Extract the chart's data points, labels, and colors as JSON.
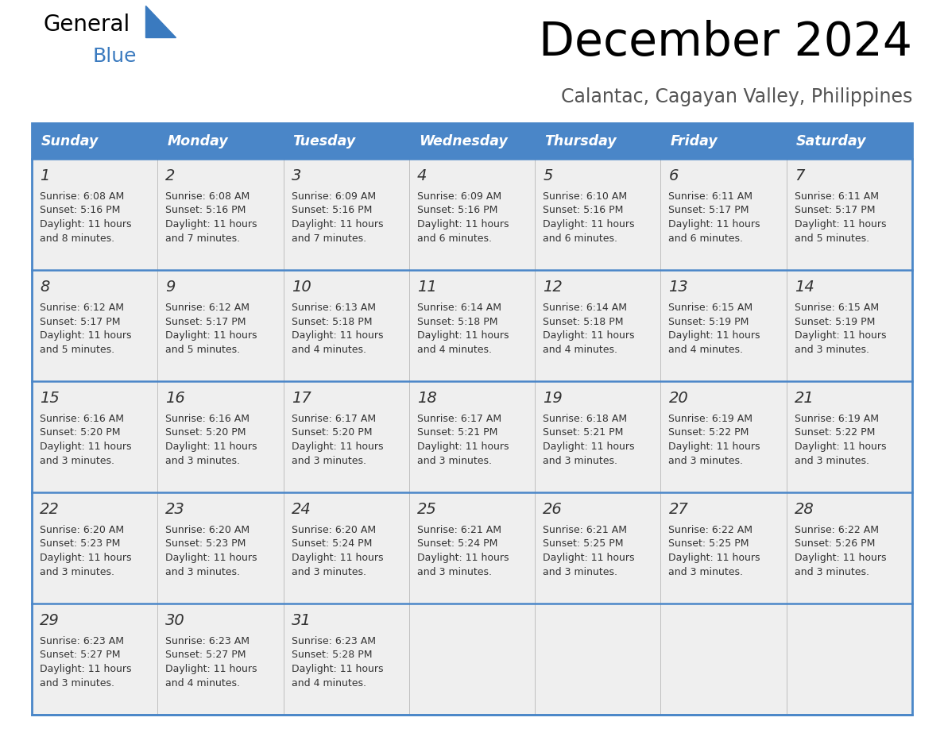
{
  "title": "December 2024",
  "subtitle": "Calantac, Cagayan Valley, Philippines",
  "header_color": "#4a86c8",
  "header_text_color": "#ffffff",
  "cell_bg_color": "#efefef",
  "border_color": "#4a86c8",
  "text_color": "#333333",
  "days_of_week": [
    "Sunday",
    "Monday",
    "Tuesday",
    "Wednesday",
    "Thursday",
    "Friday",
    "Saturday"
  ],
  "calendar_data": [
    [
      {
        "day": 1,
        "sunrise": "6:08 AM",
        "sunset": "5:16 PM",
        "daylight_line1": "Daylight: 11 hours",
        "daylight_line2": "and 8 minutes."
      },
      {
        "day": 2,
        "sunrise": "6:08 AM",
        "sunset": "5:16 PM",
        "daylight_line1": "Daylight: 11 hours",
        "daylight_line2": "and 7 minutes."
      },
      {
        "day": 3,
        "sunrise": "6:09 AM",
        "sunset": "5:16 PM",
        "daylight_line1": "Daylight: 11 hours",
        "daylight_line2": "and 7 minutes."
      },
      {
        "day": 4,
        "sunrise": "6:09 AM",
        "sunset": "5:16 PM",
        "daylight_line1": "Daylight: 11 hours",
        "daylight_line2": "and 6 minutes."
      },
      {
        "day": 5,
        "sunrise": "6:10 AM",
        "sunset": "5:16 PM",
        "daylight_line1": "Daylight: 11 hours",
        "daylight_line2": "and 6 minutes."
      },
      {
        "day": 6,
        "sunrise": "6:11 AM",
        "sunset": "5:17 PM",
        "daylight_line1": "Daylight: 11 hours",
        "daylight_line2": "and 6 minutes."
      },
      {
        "day": 7,
        "sunrise": "6:11 AM",
        "sunset": "5:17 PM",
        "daylight_line1": "Daylight: 11 hours",
        "daylight_line2": "and 5 minutes."
      }
    ],
    [
      {
        "day": 8,
        "sunrise": "6:12 AM",
        "sunset": "5:17 PM",
        "daylight_line1": "Daylight: 11 hours",
        "daylight_line2": "and 5 minutes."
      },
      {
        "day": 9,
        "sunrise": "6:12 AM",
        "sunset": "5:17 PM",
        "daylight_line1": "Daylight: 11 hours",
        "daylight_line2": "and 5 minutes."
      },
      {
        "day": 10,
        "sunrise": "6:13 AM",
        "sunset": "5:18 PM",
        "daylight_line1": "Daylight: 11 hours",
        "daylight_line2": "and 4 minutes."
      },
      {
        "day": 11,
        "sunrise": "6:14 AM",
        "sunset": "5:18 PM",
        "daylight_line1": "Daylight: 11 hours",
        "daylight_line2": "and 4 minutes."
      },
      {
        "day": 12,
        "sunrise": "6:14 AM",
        "sunset": "5:18 PM",
        "daylight_line1": "Daylight: 11 hours",
        "daylight_line2": "and 4 minutes."
      },
      {
        "day": 13,
        "sunrise": "6:15 AM",
        "sunset": "5:19 PM",
        "daylight_line1": "Daylight: 11 hours",
        "daylight_line2": "and 4 minutes."
      },
      {
        "day": 14,
        "sunrise": "6:15 AM",
        "sunset": "5:19 PM",
        "daylight_line1": "Daylight: 11 hours",
        "daylight_line2": "and 3 minutes."
      }
    ],
    [
      {
        "day": 15,
        "sunrise": "6:16 AM",
        "sunset": "5:20 PM",
        "daylight_line1": "Daylight: 11 hours",
        "daylight_line2": "and 3 minutes."
      },
      {
        "day": 16,
        "sunrise": "6:16 AM",
        "sunset": "5:20 PM",
        "daylight_line1": "Daylight: 11 hours",
        "daylight_line2": "and 3 minutes."
      },
      {
        "day": 17,
        "sunrise": "6:17 AM",
        "sunset": "5:20 PM",
        "daylight_line1": "Daylight: 11 hours",
        "daylight_line2": "and 3 minutes."
      },
      {
        "day": 18,
        "sunrise": "6:17 AM",
        "sunset": "5:21 PM",
        "daylight_line1": "Daylight: 11 hours",
        "daylight_line2": "and 3 minutes."
      },
      {
        "day": 19,
        "sunrise": "6:18 AM",
        "sunset": "5:21 PM",
        "daylight_line1": "Daylight: 11 hours",
        "daylight_line2": "and 3 minutes."
      },
      {
        "day": 20,
        "sunrise": "6:19 AM",
        "sunset": "5:22 PM",
        "daylight_line1": "Daylight: 11 hours",
        "daylight_line2": "and 3 minutes."
      },
      {
        "day": 21,
        "sunrise": "6:19 AM",
        "sunset": "5:22 PM",
        "daylight_line1": "Daylight: 11 hours",
        "daylight_line2": "and 3 minutes."
      }
    ],
    [
      {
        "day": 22,
        "sunrise": "6:20 AM",
        "sunset": "5:23 PM",
        "daylight_line1": "Daylight: 11 hours",
        "daylight_line2": "and 3 minutes."
      },
      {
        "day": 23,
        "sunrise": "6:20 AM",
        "sunset": "5:23 PM",
        "daylight_line1": "Daylight: 11 hours",
        "daylight_line2": "and 3 minutes."
      },
      {
        "day": 24,
        "sunrise": "6:20 AM",
        "sunset": "5:24 PM",
        "daylight_line1": "Daylight: 11 hours",
        "daylight_line2": "and 3 minutes."
      },
      {
        "day": 25,
        "sunrise": "6:21 AM",
        "sunset": "5:24 PM",
        "daylight_line1": "Daylight: 11 hours",
        "daylight_line2": "and 3 minutes."
      },
      {
        "day": 26,
        "sunrise": "6:21 AM",
        "sunset": "5:25 PM",
        "daylight_line1": "Daylight: 11 hours",
        "daylight_line2": "and 3 minutes."
      },
      {
        "day": 27,
        "sunrise": "6:22 AM",
        "sunset": "5:25 PM",
        "daylight_line1": "Daylight: 11 hours",
        "daylight_line2": "and 3 minutes."
      },
      {
        "day": 28,
        "sunrise": "6:22 AM",
        "sunset": "5:26 PM",
        "daylight_line1": "Daylight: 11 hours",
        "daylight_line2": "and 3 minutes."
      }
    ],
    [
      {
        "day": 29,
        "sunrise": "6:23 AM",
        "sunset": "5:27 PM",
        "daylight_line1": "Daylight: 11 hours",
        "daylight_line2": "and 3 minutes."
      },
      {
        "day": 30,
        "sunrise": "6:23 AM",
        "sunset": "5:27 PM",
        "daylight_line1": "Daylight: 11 hours",
        "daylight_line2": "and 4 minutes."
      },
      {
        "day": 31,
        "sunrise": "6:23 AM",
        "sunset": "5:28 PM",
        "daylight_line1": "Daylight: 11 hours",
        "daylight_line2": "and 4 minutes."
      },
      null,
      null,
      null,
      null
    ]
  ]
}
